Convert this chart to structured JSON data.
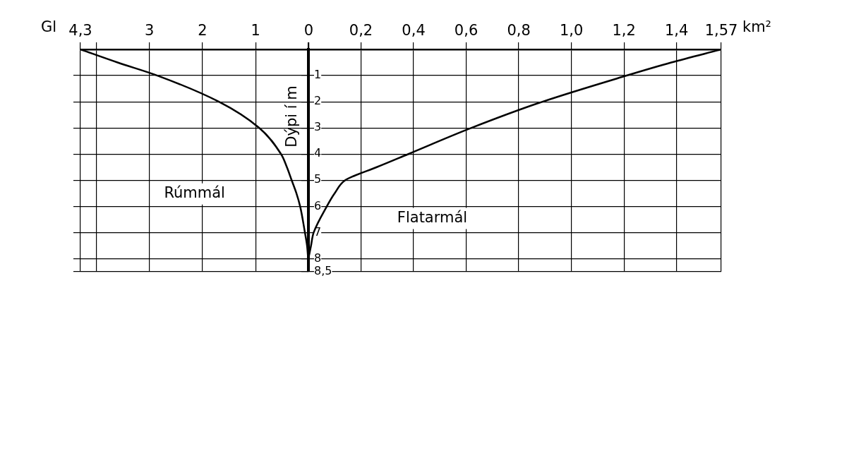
{
  "chart_data": [
    {
      "type": "line",
      "xlabel": "Gl",
      "xlim": [
        4.3,
        0
      ],
      "xticks": [
        {
          "value": 4.3,
          "label": "4,3"
        },
        {
          "value": 4,
          "label": null
        },
        3,
        2,
        1,
        0
      ],
      "ylim": [
        8.5,
        0
      ],
      "yticks": [
        1,
        2,
        3,
        4,
        5,
        6,
        7,
        8,
        8.5
      ],
      "tick_labels": "x",
      "grid": true,
      "legend": false,
      "marker": "none",
      "line_style": "solid",
      "series": [
        {
          "name": "Rúmmál",
          "color": "#000000",
          "x": [
            4.3,
            3.6,
            2.85,
            1.69,
            0.93,
            0.52,
            0.41,
            0.32,
            0.23,
            0.16,
            0.07,
            0.03,
            0.01,
            0
          ],
          "values": [
            0,
            0.5,
            1,
            2,
            3,
            4,
            4.5,
            5,
            5.5,
            6,
            7,
            7.5,
            8,
            8.3
          ]
        }
      ]
    },
    {
      "type": "line",
      "xlabel": "km²",
      "ylabel": "Dýpi í m",
      "xlim": [
        0,
        1.57
      ],
      "xticks": [
        {
          "value": 0,
          "label": null
        },
        {
          "value": 0.2,
          "label": "0,2"
        },
        {
          "value": 0.4,
          "label": "0,4"
        },
        {
          "value": 0.6,
          "label": "0,6"
        },
        {
          "value": 0.8,
          "label": "0,8"
        },
        {
          "value": 1,
          "label": "1,0"
        },
        {
          "value": 1.2,
          "label": "1,2"
        },
        {
          "value": 1.4,
          "label": "1,4"
        },
        {
          "value": 1.57,
          "label": "1,57"
        }
      ],
      "ylim": [
        8.5,
        0
      ],
      "yticks": [
        1,
        2,
        3,
        4,
        5,
        6,
        7,
        8,
        {
          "value": 8.5,
          "label": "8,5"
        }
      ],
      "grid": true,
      "legend": false,
      "marker": "none",
      "line_style": "solid",
      "series": [
        {
          "name": "Flatarmál",
          "color": "#000000",
          "x": [
            1.57,
            1.38,
            1.21,
            0.89,
            0.62,
            0.38,
            0.26,
            0.17,
            0.14,
            0.1,
            0.07,
            0.02,
            0.01,
            0
          ],
          "values": [
            0,
            0.5,
            1,
            2,
            3,
            4,
            4.5,
            4.85,
            5,
            5.5,
            6,
            7,
            7.5,
            8
          ]
        }
      ]
    }
  ]
}
